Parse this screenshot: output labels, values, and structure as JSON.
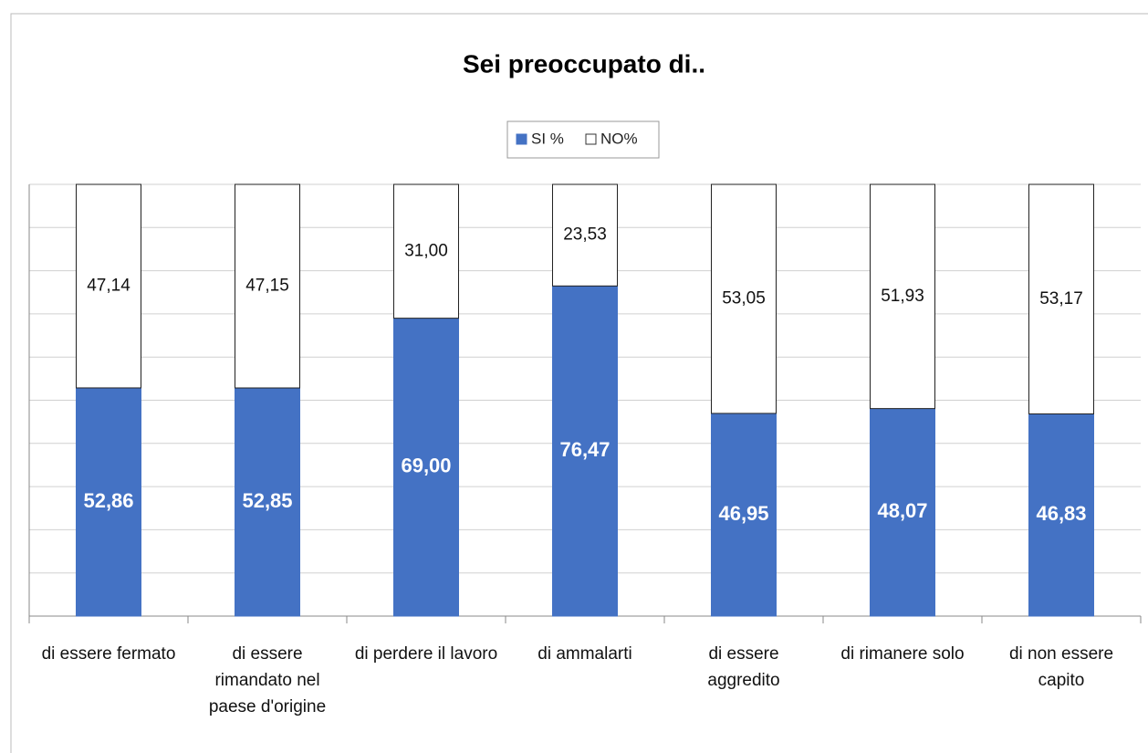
{
  "chart_data": {
    "type": "stacked_bar_100",
    "title": "Sei preoccupato di..",
    "categories": [
      "di essere fermato",
      "di essere rimandato nel paese d'origine",
      "di perdere il lavoro",
      "di ammalarti",
      "di essere aggredito",
      "di rimanere solo",
      "di non essere capito"
    ],
    "series": [
      {
        "name": "SI %",
        "color": "#4472c4",
        "values": [
          52.86,
          52.85,
          69.0,
          76.47,
          46.95,
          48.07,
          46.83
        ],
        "value_labels": [
          "52,86",
          "52,85",
          "69,00",
          "76,47",
          "46,95",
          "48,07",
          "46,83"
        ]
      },
      {
        "name": "NO%",
        "color": "#ffffff",
        "values": [
          47.14,
          47.15,
          31.0,
          23.53,
          53.05,
          51.93,
          53.17
        ],
        "value_labels": [
          "47,14",
          "47,15",
          "31,00",
          "23,53",
          "53,05",
          "51,93",
          "53,17"
        ]
      }
    ],
    "ylim": [
      0,
      100
    ],
    "yticks": [
      0,
      10,
      20,
      30,
      40,
      50,
      60,
      70,
      80,
      90,
      100
    ],
    "grid": true,
    "legend": "top"
  }
}
